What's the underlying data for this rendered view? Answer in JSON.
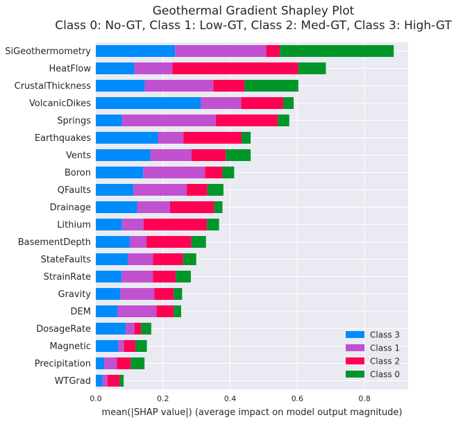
{
  "chart_data": {
    "type": "bar",
    "stacked": true,
    "orientation": "horizontal",
    "title": [
      "Geothermal Gradient Shapley Plot",
      "Class 0: No-GT, Class 1: Low-GT, Class 2: Med-GT, Class 3: High-GT"
    ],
    "xlabel": "mean(|SHAP value|) (average impact on model output magnitude)",
    "ylabel": "",
    "xlim": [
      0,
      0.93
    ],
    "xticks": [
      0.0,
      0.2,
      0.4,
      0.6,
      0.8
    ],
    "grid": true,
    "legend_position": "bottom-right",
    "categories": [
      "SiGeothermometry",
      "HeatFlow",
      "CrustalThickness",
      "VolcanicDikes",
      "Springs",
      "Earthquakes",
      "Vents",
      "Boron",
      "QFaults",
      "Drainage",
      "Lithium",
      "BasementDepth",
      "StateFaults",
      "StrainRate",
      "Gravity",
      "DEM",
      "DosageRate",
      "Magnetic",
      "Precipitation",
      "WTGrad"
    ],
    "series": [
      {
        "name": "Class 3",
        "color": "#008bfb",
        "values": [
          0.236,
          0.115,
          0.146,
          0.313,
          0.078,
          0.185,
          0.163,
          0.141,
          0.112,
          0.123,
          0.078,
          0.101,
          0.096,
          0.077,
          0.073,
          0.064,
          0.089,
          0.067,
          0.025,
          0.02
        ]
      },
      {
        "name": "Class 1",
        "color": "#c151d0",
        "values": [
          0.271,
          0.113,
          0.204,
          0.12,
          0.279,
          0.076,
          0.122,
          0.184,
          0.159,
          0.098,
          0.064,
          0.05,
          0.074,
          0.093,
          0.101,
          0.117,
          0.026,
          0.017,
          0.038,
          0.015
        ]
      },
      {
        "name": "Class 2",
        "color": "#ff0052",
        "values": [
          0.041,
          0.375,
          0.093,
          0.125,
          0.185,
          0.173,
          0.102,
          0.052,
          0.061,
          0.131,
          0.189,
          0.133,
          0.09,
          0.068,
          0.058,
          0.051,
          0.02,
          0.034,
          0.041,
          0.036
        ]
      },
      {
        "name": "Class 0",
        "color": "#00962a",
        "values": [
          0.339,
          0.082,
          0.16,
          0.031,
          0.034,
          0.027,
          0.074,
          0.035,
          0.048,
          0.025,
          0.036,
          0.044,
          0.039,
          0.045,
          0.025,
          0.022,
          0.03,
          0.034,
          0.041,
          0.012
        ]
      }
    ],
    "legend_order": [
      "Class 3",
      "Class 1",
      "Class 2",
      "Class 0"
    ]
  }
}
